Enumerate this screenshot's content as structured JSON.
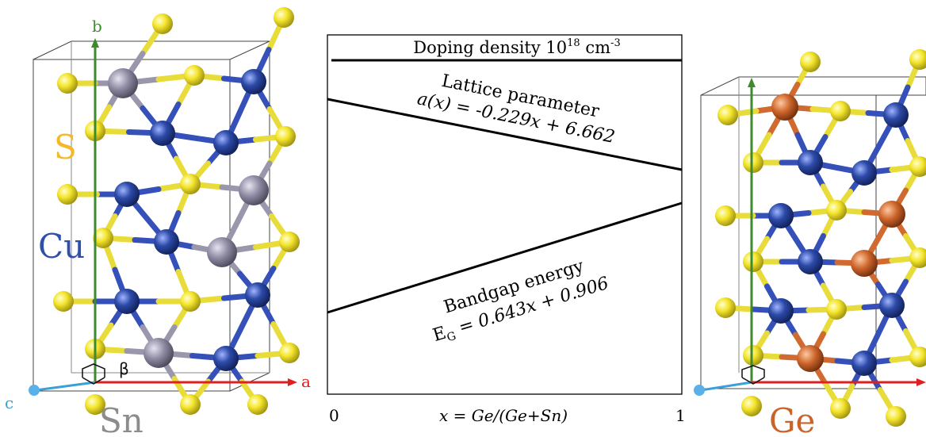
{
  "left_structure": {
    "axis_b": "b",
    "axis_a": "a",
    "axis_c": "c",
    "angle": "β",
    "element_s": "S",
    "element_cu": "Cu",
    "element_sn": "Sn",
    "colors": {
      "S": "#f2e52a",
      "Cu": "#2f4fa8",
      "Sn": "#8e8aa2",
      "b_axis": "#3e8a2e",
      "a_axis": "#e02020",
      "c_axis": "#3aa0d8"
    }
  },
  "right_structure": {
    "element_ge": "Ge",
    "colors": {
      "S": "#f2e52a",
      "Cu": "#2f4fa8",
      "Ge": "#c9632a"
    }
  },
  "panel": {
    "doping_label": "Doping density  10",
    "doping_exp": "18",
    "doping_unit": " cm",
    "doping_unit_exp": "-3",
    "lattice_title": "Lattice parameter",
    "lattice_formula": "a(x) = -0.229x + 6.662",
    "bandgap_title": "Bandgap energy",
    "bandgap_formula": "E",
    "bandgap_sub": "G",
    "bandgap_rest": " = 0.643x + 0.906",
    "x_min": "0",
    "x_max": "1",
    "x_label": "x = Ge/(Ge+Sn)"
  }
}
